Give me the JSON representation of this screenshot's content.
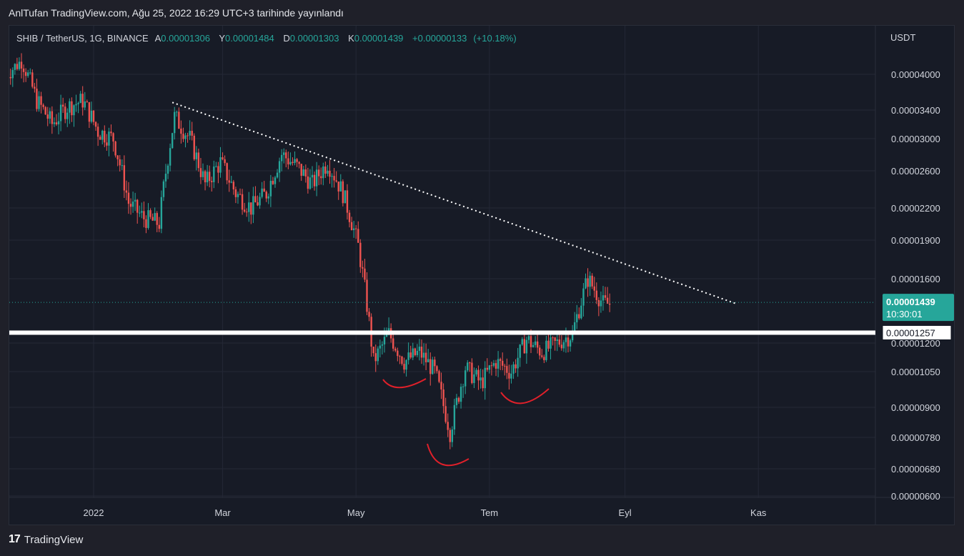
{
  "header": {
    "published_text": "AnlTufan TradingView.com, Ağu 25, 2022 16:29 UTC+3 tarihinde yayınlandı"
  },
  "legend": {
    "symbol": "SHIB / TetherUS, 1G, BINANCE",
    "open_label": "A",
    "open_value": "0.00001306",
    "high_label": "Y",
    "high_value": "0.00001484",
    "low_label": "D",
    "low_value": "0.00001303",
    "close_label": "K",
    "close_value": "0.00001439",
    "change_value": "+0.00000133",
    "change_pct": "(+10.18%)"
  },
  "axis": {
    "unit": "USDT"
  },
  "price_tags": {
    "last_price": "0.00001439",
    "countdown": "10:30:01",
    "horizontal_line_price": "0.00001257"
  },
  "footer": {
    "brand_logo": "17",
    "brand_name": "TradingView"
  },
  "colors": {
    "background": "#171b26",
    "up": "#26a69a",
    "down": "#ef5350",
    "trendline": "#ffffff",
    "support": "#ffffff",
    "annotation": "#e0202a"
  },
  "chart_data": {
    "type": "candlestick",
    "scale": "log",
    "grid": true,
    "ylim": [
      5.9e-06,
      5.8e-06
    ],
    "y_ticks": [
      "0.00004000",
      "0.00003400",
      "0.00003000",
      "0.00002600",
      "0.00002200",
      "0.00001900",
      "0.00001600",
      "0.00001200",
      "0.00001050",
      "0.00000900",
      "0.00000780",
      "0.00000680",
      "0.00000600"
    ],
    "y_tick_values": [
      4e-05,
      3.4e-05,
      3e-05,
      2.6e-05,
      2.2e-05,
      1.9e-05,
      1.6e-05,
      1.2e-05,
      1.05e-05,
      9e-06,
      7.8e-06,
      6.8e-06,
      6e-06
    ],
    "x_ticks": [
      "2022",
      "Mar",
      "May",
      "Tem",
      "Eyl",
      "Kas"
    ],
    "x_tick_dates": [
      "2022-01-01",
      "2022-03-01",
      "2022-05-01",
      "2022-07-01",
      "2022-09-01",
      "2022-11-01"
    ],
    "x_start": "2021-11-22",
    "x_end": "2023-01-12",
    "last_close": 1.439e-05,
    "horizontal_level": 1.257e-05,
    "trendline": {
      "from": [
        "2022-02-06",
        3.52e-05
      ],
      "to": [
        "2022-10-22",
        1.43e-05
      ]
    },
    "closes_weekly": [
      {
        "date": "2021-11-22",
        "close": 4e-05
      },
      {
        "date": "2021-11-29",
        "close": 4.3e-05
      },
      {
        "date": "2021-12-06",
        "close": 3.55e-05
      },
      {
        "date": "2021-12-13",
        "close": 3.2e-05
      },
      {
        "date": "2021-12-20",
        "close": 3.45e-05
      },
      {
        "date": "2021-12-27",
        "close": 3.55e-05
      },
      {
        "date": "2022-01-03",
        "close": 3.1e-05
      },
      {
        "date": "2022-01-10",
        "close": 3e-05
      },
      {
        "date": "2022-01-17",
        "close": 2.25e-05
      },
      {
        "date": "2022-01-24",
        "close": 2.1e-05
      },
      {
        "date": "2022-01-31",
        "close": 2.05e-05
      },
      {
        "date": "2022-02-07",
        "close": 3.3e-05
      },
      {
        "date": "2022-02-14",
        "close": 3e-05
      },
      {
        "date": "2022-02-21",
        "close": 2.45e-05
      },
      {
        "date": "2022-02-28",
        "close": 2.7e-05
      },
      {
        "date": "2022-03-07",
        "close": 2.35e-05
      },
      {
        "date": "2022-03-14",
        "close": 2.2e-05
      },
      {
        "date": "2022-03-21",
        "close": 2.35e-05
      },
      {
        "date": "2022-03-28",
        "close": 2.8e-05
      },
      {
        "date": "2022-04-04",
        "close": 2.65e-05
      },
      {
        "date": "2022-04-11",
        "close": 2.45e-05
      },
      {
        "date": "2022-04-18",
        "close": 2.7e-05
      },
      {
        "date": "2022-04-25",
        "close": 2.35e-05
      },
      {
        "date": "2022-05-02",
        "close": 1.85e-05
      },
      {
        "date": "2022-05-09",
        "close": 1.1e-05
      },
      {
        "date": "2022-05-16",
        "close": 1.25e-05
      },
      {
        "date": "2022-05-23",
        "close": 1.1e-05
      },
      {
        "date": "2022-05-30",
        "close": 1.15e-05
      },
      {
        "date": "2022-06-06",
        "close": 1.05e-05
      },
      {
        "date": "2022-06-13",
        "close": 8e-06
      },
      {
        "date": "2022-06-20",
        "close": 1.07e-05
      },
      {
        "date": "2022-06-27",
        "close": 1e-05
      },
      {
        "date": "2022-07-04",
        "close": 1.1e-05
      },
      {
        "date": "2022-07-11",
        "close": 1.05e-05
      },
      {
        "date": "2022-07-18",
        "close": 1.22e-05
      },
      {
        "date": "2022-07-25",
        "close": 1.15e-05
      },
      {
        "date": "2022-08-01",
        "close": 1.2e-05
      },
      {
        "date": "2022-08-08",
        "close": 1.25e-05
      },
      {
        "date": "2022-08-15",
        "close": 1.6e-05
      },
      {
        "date": "2022-08-22",
        "close": 1.43e-05
      }
    ]
  }
}
